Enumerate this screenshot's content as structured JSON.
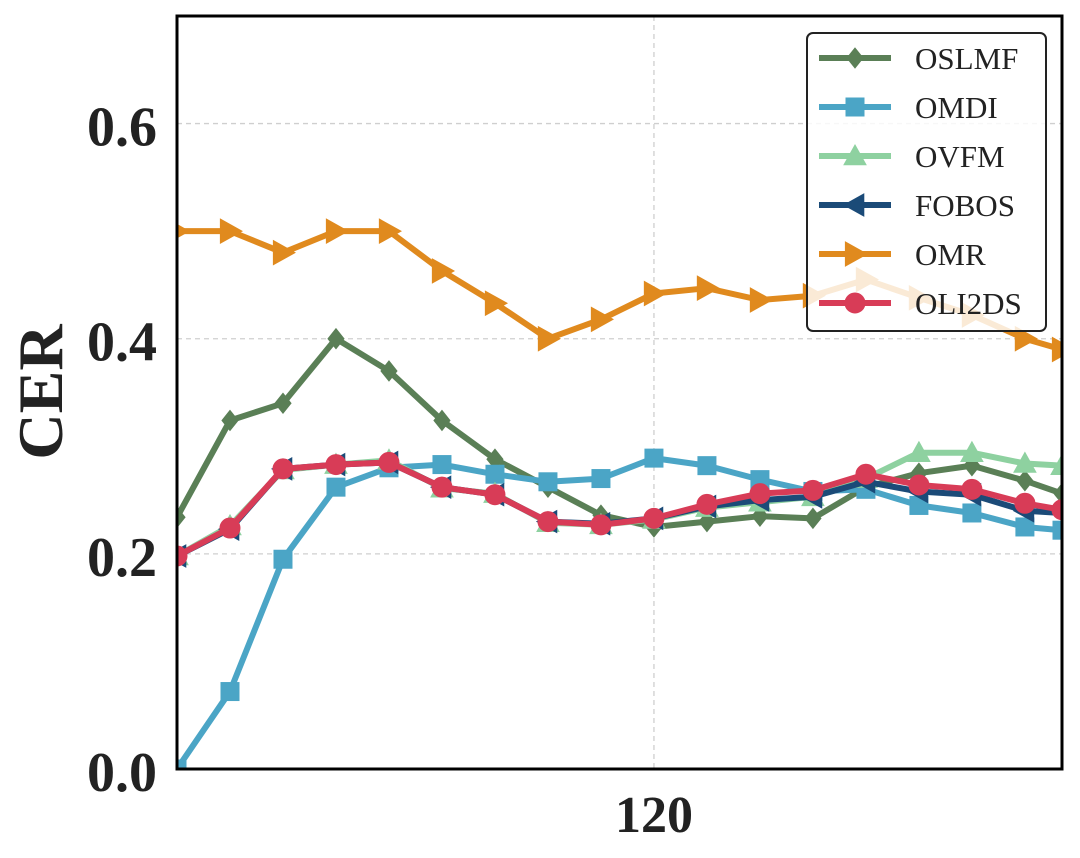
{
  "chart_data": {
    "type": "line",
    "title": "",
    "xlabel": "",
    "ylabel": "CER",
    "xlim": [
      30,
      197
    ],
    "ylim": [
      0,
      0.7
    ],
    "x": [
      30,
      40,
      50,
      60,
      70,
      80,
      90,
      100,
      110,
      120,
      130,
      140,
      150,
      160,
      170,
      180,
      190,
      197
    ],
    "xticks": [
      120
    ],
    "xtick_labels": [
      "120"
    ],
    "yticks": [
      0.0,
      0.2,
      0.4,
      0.6
    ],
    "ytick_labels": [
      "0.0",
      "0.2",
      "0.4",
      "0.6"
    ],
    "grid": true,
    "legend_position": "top-right",
    "series": [
      {
        "name": "OSLMF",
        "color": "#5a7f56",
        "marker": "diamond",
        "values": [
          0.234,
          0.324,
          0.34,
          0.4,
          0.37,
          0.324,
          0.288,
          0.262,
          0.236,
          0.225,
          0.23,
          0.235,
          0.233,
          0.262,
          0.275,
          0.282,
          0.268,
          0.256
        ]
      },
      {
        "name": "OMDI",
        "color": "#4ba5c6",
        "marker": "square",
        "values": [
          0.0,
          0.072,
          0.195,
          0.262,
          0.28,
          0.283,
          0.274,
          0.267,
          0.27,
          0.289,
          0.282,
          0.269,
          0.258,
          0.26,
          0.245,
          0.238,
          0.225,
          0.222
        ]
      },
      {
        "name": "OVFM",
        "color": "#8ed1a0",
        "marker": "triangle-up",
        "values": [
          0.198,
          0.226,
          0.278,
          0.283,
          0.287,
          0.261,
          0.256,
          0.229,
          0.227,
          0.232,
          0.243,
          0.248,
          0.253,
          0.27,
          0.294,
          0.294,
          0.284,
          0.282
        ]
      },
      {
        "name": "FOBOS",
        "color": "#1b4b78",
        "marker": "triangle-left",
        "values": [
          0.198,
          0.223,
          0.279,
          0.283,
          0.285,
          0.262,
          0.255,
          0.23,
          0.228,
          0.233,
          0.244,
          0.25,
          0.253,
          0.267,
          0.258,
          0.255,
          0.24,
          0.238
        ]
      },
      {
        "name": "OMR",
        "color": "#e08a1e",
        "marker": "triangle-right",
        "values": [
          0.5,
          0.5,
          0.48,
          0.5,
          0.5,
          0.463,
          0.433,
          0.4,
          0.418,
          0.442,
          0.447,
          0.436,
          0.44,
          0.455,
          0.438,
          0.422,
          0.4,
          0.39
        ]
      },
      {
        "name": "OLI2DS",
        "color": "#d83c57",
        "marker": "circle",
        "values": [
          0.198,
          0.224,
          0.279,
          0.283,
          0.285,
          0.262,
          0.255,
          0.23,
          0.227,
          0.233,
          0.246,
          0.256,
          0.259,
          0.274,
          0.264,
          0.26,
          0.247,
          0.241
        ]
      }
    ]
  }
}
